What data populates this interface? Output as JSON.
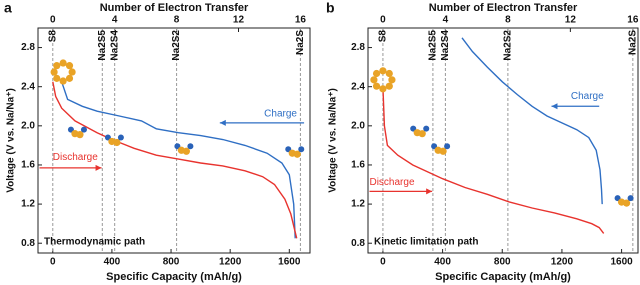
{
  "chart_data": [
    {
      "type": "line",
      "panel": "a",
      "top_axis_label": "Number of Electron Transfer",
      "x_label": "Specific Capacity (mAh/g)",
      "y_label": "Voltage (V vs. Na/Na⁺)",
      "xlim": [
        -100,
        1740
      ],
      "xticks": [
        0,
        400,
        800,
        1200,
        1600
      ],
      "x2lim": [
        -0.955,
        16.62
      ],
      "x2ticks": [
        0,
        4,
        8,
        12,
        16
      ],
      "ylim": [
        0.7,
        3.0
      ],
      "yticks": [
        0.8,
        1.2,
        1.6,
        {
          "value": 2,
          "label": "2.0"
        },
        2.4,
        2.8
      ],
      "species": [
        {
          "label": "S8",
          "x2": 0
        },
        {
          "label": "Na2S5",
          "x2": 3.2
        },
        {
          "label": "Na2S4",
          "x2": 4
        },
        {
          "label": "Na2S2",
          "x2": 8
        },
        {
          "label": "Na2S",
          "x2": 16
        }
      ],
      "path_label": "Thermodynamic path",
      "series": [
        {
          "name": "Charge",
          "color": "#2f6fc4",
          "x": [
            60,
            100,
            200,
            300,
            450,
            600,
            700,
            850,
            1000,
            1150,
            1300,
            1450,
            1550,
            1600,
            1630,
            1640
          ],
          "values": [
            2.45,
            2.27,
            2.2,
            2.15,
            2.1,
            2.05,
            1.97,
            1.93,
            1.9,
            1.86,
            1.8,
            1.72,
            1.62,
            1.5,
            1.2,
            0.85
          ]
        },
        {
          "name": "Discharge",
          "color": "#e8332e",
          "x": [
            0,
            20,
            60,
            150,
            300,
            400,
            550,
            700,
            850,
            1000,
            1150,
            1300,
            1420,
            1500,
            1570,
            1610,
            1650
          ],
          "values": [
            2.45,
            2.3,
            2.18,
            2.05,
            1.93,
            1.86,
            1.77,
            1.7,
            1.66,
            1.62,
            1.59,
            1.54,
            1.48,
            1.4,
            1.25,
            1.1,
            0.85
          ]
        }
      ]
    },
    {
      "type": "line",
      "panel": "b",
      "top_axis_label": "Number of Electron Transfer",
      "x_label": "Specific Capacity (mAh/g)",
      "y_label": "Voltage (V vs. Na/Na⁺)",
      "xlim": [
        -100,
        1710
      ],
      "xticks": [
        0,
        400,
        800,
        1200,
        1600
      ],
      "x2lim": [
        -0.955,
        16.33
      ],
      "x2ticks": [
        0,
        4,
        8,
        12,
        16
      ],
      "ylim": [
        0.7,
        3.0
      ],
      "yticks": [
        0.8,
        1.2,
        1.6,
        {
          "value": 2,
          "label": "2.0"
        },
        2.4,
        2.8
      ],
      "species": [
        {
          "label": "S8",
          "x2": 0
        },
        {
          "label": "Na2S5",
          "x2": 3.2
        },
        {
          "label": "Na2S4",
          "x2": 4
        },
        {
          "label": "Na2S2",
          "x2": 8
        },
        {
          "label": "Na2S",
          "x2": 16
        }
      ],
      "path_label": "Kinetic limitation path",
      "series": [
        {
          "name": "Charge",
          "color": "#2f6fc4",
          "x": [
            530,
            600,
            700,
            800,
            900,
            1000,
            1100,
            1200,
            1300,
            1380,
            1430,
            1455,
            1465,
            1470
          ],
          "values": [
            2.9,
            2.76,
            2.6,
            2.45,
            2.32,
            2.2,
            2.1,
            2.03,
            1.96,
            1.88,
            1.75,
            1.55,
            1.35,
            1.2
          ]
        },
        {
          "name": "Discharge",
          "color": "#e8332e",
          "x": [
            0,
            10,
            30,
            100,
            200,
            400,
            550,
            700,
            850,
            1000,
            1150,
            1300,
            1400,
            1450,
            1480
          ],
          "values": [
            2.4,
            2.0,
            1.8,
            1.7,
            1.6,
            1.46,
            1.37,
            1.3,
            1.22,
            1.16,
            1.11,
            1.05,
            1.0,
            0.96,
            0.9
          ]
        }
      ]
    }
  ]
}
